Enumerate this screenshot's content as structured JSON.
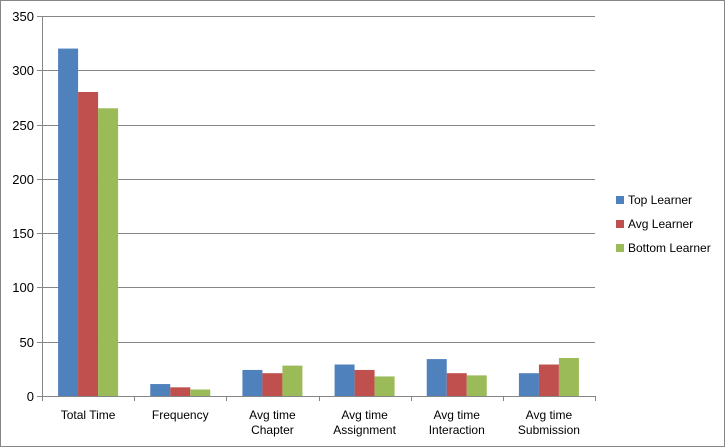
{
  "chart_data": {
    "type": "bar",
    "title": "",
    "xlabel": "",
    "ylabel": "",
    "ylim": [
      0,
      350
    ],
    "yticks": [
      0,
      50,
      100,
      150,
      200,
      250,
      300,
      350
    ],
    "grid": true,
    "legend_position": "right",
    "categories": [
      [
        "Total Time"
      ],
      [
        "Frequency"
      ],
      [
        "Avg time",
        "Chapter"
      ],
      [
        "Avg time",
        "Assignment"
      ],
      [
        "Avg time",
        "Interaction"
      ],
      [
        "Avg time",
        "Submission"
      ]
    ],
    "series": [
      {
        "name": "Top Learner",
        "color": "#4F81BD",
        "values": [
          320,
          11,
          24,
          29,
          34,
          21
        ]
      },
      {
        "name": "Avg Learner",
        "color": "#C0504D",
        "values": [
          280,
          8,
          21,
          24,
          21,
          29
        ]
      },
      {
        "name": "Bottom Learner",
        "color": "#9BBB59",
        "values": [
          265,
          6,
          28,
          18,
          19,
          35
        ]
      }
    ]
  }
}
